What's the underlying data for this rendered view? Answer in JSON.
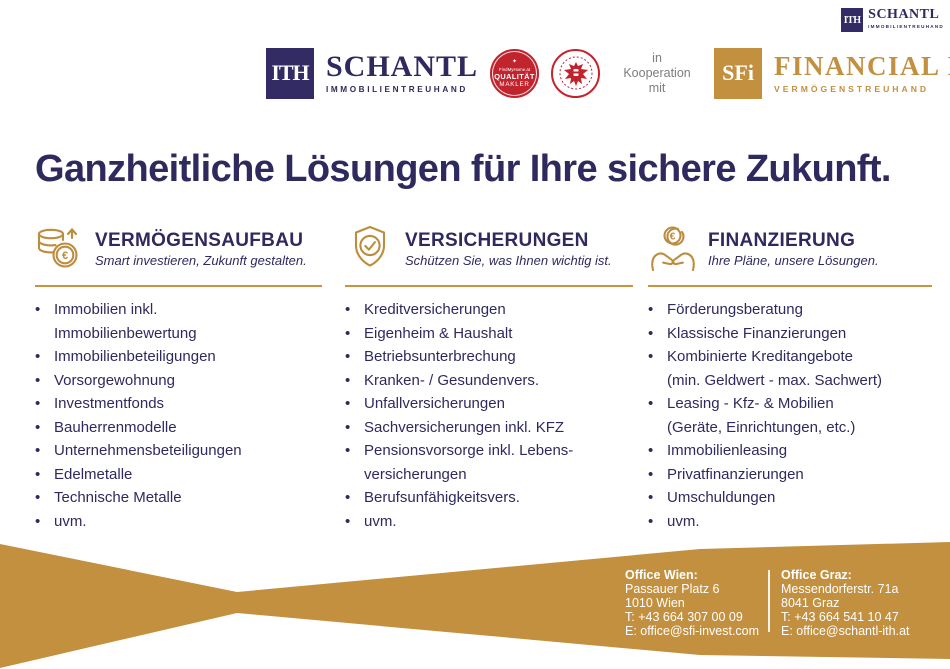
{
  "colors": {
    "navy": "#2e2a5e",
    "gold": "#c2903f",
    "badge_red": "#c2242e",
    "gray": "#7d7d7d"
  },
  "icons": {
    "euro": "€"
  },
  "top_right_logo": {
    "monogram": "ITH",
    "name": "SCHANTL",
    "subtitle": "IMMOBILIENTREUHAND"
  },
  "header": {
    "schantl_logo": {
      "monogram": "ITH",
      "name": "SCHANTL",
      "subtitle": "IMMOBILIENTREUHAND"
    },
    "badge_quality": {
      "brand": "FindMyHome.at",
      "line1": "QUALITÄT",
      "line2": "MAKLER",
      "emblem": "✦"
    },
    "cooperation": "in\nKooperation\nmit",
    "sfi_logo": {
      "monogram": "SFi",
      "name": "FINANCIAL INVEST",
      "subtitle": "VERMÖGENSTREUHAND"
    }
  },
  "headline": "Ganzheitliche Lösungen für Ihre sichere Zukunft.",
  "columns": [
    {
      "title": "VERMÖGENSAUFBAU",
      "subtitle": "Smart investieren, Zukunft gestalten.",
      "icon": "coins-euro-growth-icon",
      "items": [
        "Immobilien inkl.\nImmobilienbewertung",
        "Immobilienbeteiligungen",
        "Vorsorgewohnung",
        "Investmentfonds",
        "Bauherrenmodelle",
        "Unternehmensbeteiligungen",
        "Edelmetalle",
        "Technische Metalle",
        "uvm."
      ]
    },
    {
      "title": "VERSICHERUNGEN",
      "subtitle": "Schützen Sie, was Ihnen wichtig ist.",
      "icon": "shield-check-icon",
      "items": [
        "Kreditversicherungen",
        "Eigenheim & Haushalt",
        "Betriebsunterbrechung",
        "Kranken- / Gesundenvers.",
        "Unfallversicherungen",
        "Sachversicherungen inkl. KFZ",
        "Pensionsvorsorge inkl. Lebens-\nversicherungen",
        "Berufsunfähigkeitsvers.",
        "uvm."
      ]
    },
    {
      "title": "FINANZIERUNG",
      "subtitle": "Ihre Pläne, unsere Lösungen.",
      "icon": "hands-euro-coin-icon",
      "items": [
        "Förderungsberatung",
        "Klassische Finanzierungen",
        "Kombinierte Kreditangebote\n(min. Geldwert - max. Sachwert)",
        "Leasing - Kfz- & Mobilien\n(Geräte, Einrichtungen, etc.)",
        "Immobilienleasing",
        "Privatfinanzierungen",
        "Umschuldungen",
        "uvm."
      ]
    }
  ],
  "footer": {
    "offices": [
      {
        "title": "Office Wien:",
        "address1": "Passauer Platz 6",
        "address2": "1010 Wien",
        "phone": "T: +43 664 307 00 09",
        "email": "E: office@sfi-invest.com"
      },
      {
        "title": "Office Graz:",
        "address1": "Messendorferstr. 71a",
        "address2": "8041 Graz",
        "phone": "T: +43 664 541 10 47",
        "email": "E: office@schantl-ith.at"
      }
    ]
  }
}
